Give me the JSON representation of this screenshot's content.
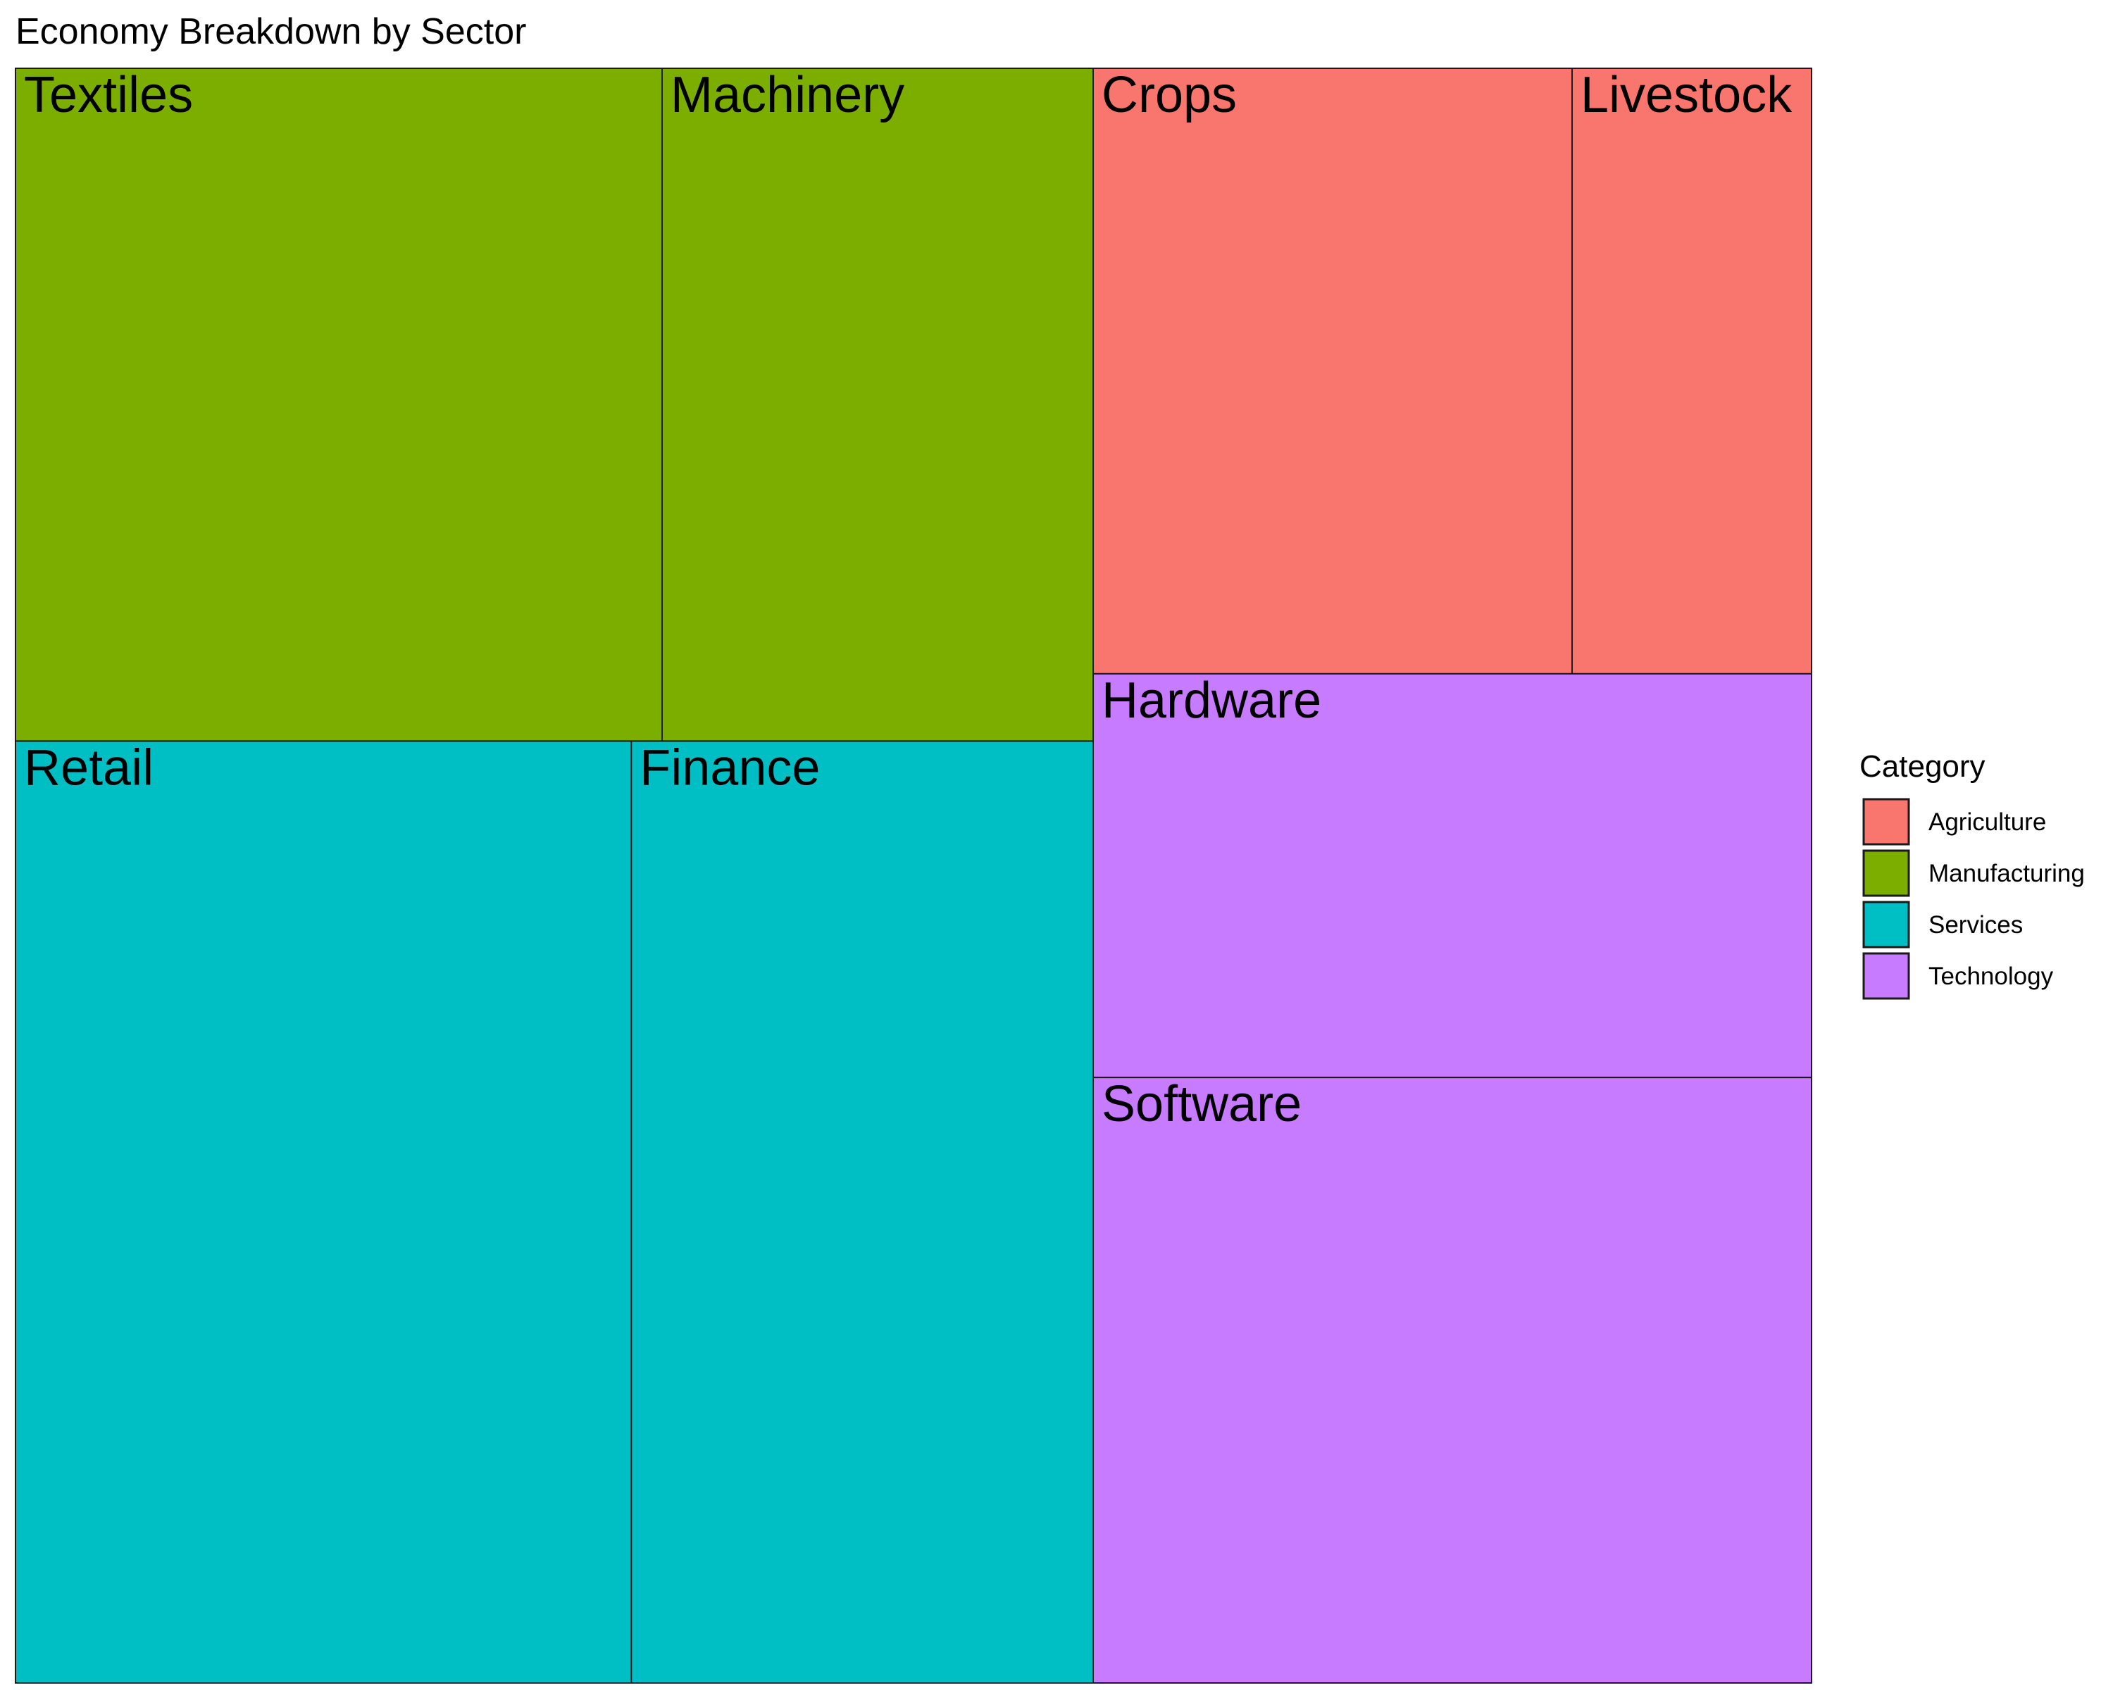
{
  "chart_data": {
    "type": "treemap",
    "title": "Economy Breakdown by Sector",
    "legend": {
      "title": "Category",
      "position": "right"
    },
    "categories": [
      {
        "name": "Agriculture",
        "color": "#F8766D"
      },
      {
        "name": "Manufacturing",
        "color": "#7CAE00"
      },
      {
        "name": "Services",
        "color": "#00BFC4"
      },
      {
        "name": "Technology",
        "color": "#C77CFF"
      }
    ],
    "items": [
      {
        "label": "Crops",
        "category": "Agriculture",
        "value": 158
      },
      {
        "label": "Livestock",
        "category": "Agriculture",
        "value": 79
      },
      {
        "label": "Textiles",
        "category": "Manufacturing",
        "value": 237
      },
      {
        "label": "Machinery",
        "category": "Manufacturing",
        "value": 158
      },
      {
        "label": "Retail",
        "category": "Services",
        "value": 316
      },
      {
        "label": "Finance",
        "category": "Services",
        "value": 237
      },
      {
        "label": "Hardware",
        "category": "Technology",
        "value": 158
      },
      {
        "label": "Software",
        "category": "Technology",
        "value": 237
      }
    ]
  }
}
